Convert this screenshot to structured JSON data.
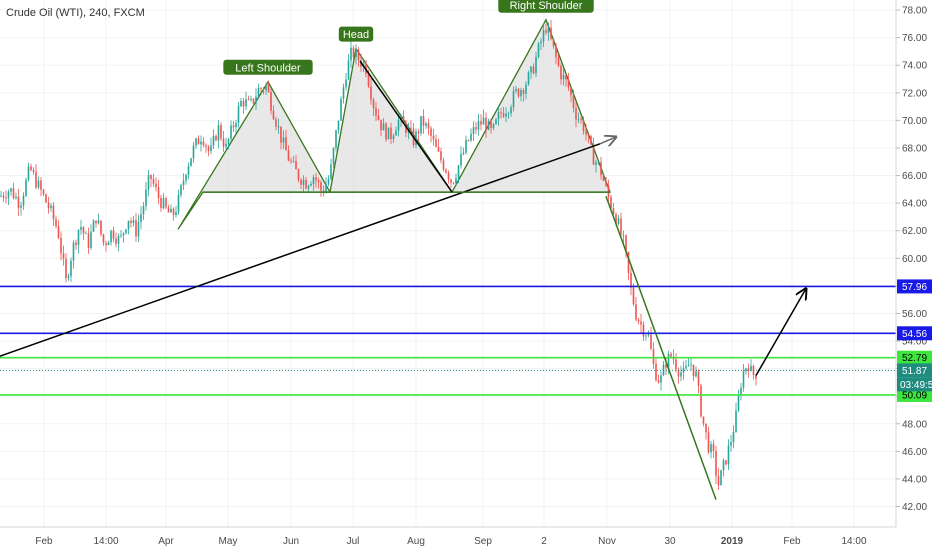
{
  "chart_data": {
    "type": "candlestick",
    "title": "Crude Oil (WTI), 240, FXCM",
    "ylim": [
      41,
      79
    ],
    "xlim": [
      0,
      932
    ],
    "y_ticks": [
      "42.00",
      "44.00",
      "46.00",
      "48.00",
      "50.00",
      "52.00",
      "54.00",
      "56.00",
      "58.00",
      "60.00",
      "62.00",
      "64.00",
      "66.00",
      "68.00",
      "70.00",
      "72.00",
      "74.00",
      "76.00",
      "78.00"
    ],
    "x_ticks": [
      {
        "label": "Feb",
        "x": 44
      },
      {
        "label": "14:00",
        "x": 106
      },
      {
        "label": "Apr",
        "x": 166
      },
      {
        "label": "May",
        "x": 228
      },
      {
        "label": "Jun",
        "x": 291
      },
      {
        "label": "Jul",
        "x": 353
      },
      {
        "label": "Aug",
        "x": 416
      },
      {
        "label": "Sep",
        "x": 483
      },
      {
        "label": "2",
        "x": 544
      },
      {
        "label": "Nov",
        "x": 607
      },
      {
        "label": "30",
        "x": 670
      },
      {
        "label": "2019",
        "x": 732
      },
      {
        "label": "Feb",
        "x": 792
      },
      {
        "label": "14:00",
        "x": 854
      }
    ],
    "bold_x_tick": "2019",
    "price_path": [
      [
        0,
        64.5
      ],
      [
        10,
        65
      ],
      [
        20,
        64
      ],
      [
        30,
        66.5
      ],
      [
        40,
        65
      ],
      [
        50,
        63.5
      ],
      [
        58,
        62
      ],
      [
        66,
        58.3
      ],
      [
        72,
        60.5
      ],
      [
        80,
        62.5
      ],
      [
        88,
        61
      ],
      [
        96,
        63
      ],
      [
        104,
        61
      ],
      [
        112,
        62
      ],
      [
        120,
        61.2
      ],
      [
        128,
        63
      ],
      [
        136,
        62
      ],
      [
        144,
        64
      ],
      [
        150,
        66
      ],
      [
        158,
        64.5
      ],
      [
        166,
        63.5
      ],
      [
        172,
        63
      ],
      [
        178,
        64
      ],
      [
        186,
        66.5
      ],
      [
        194,
        68
      ],
      [
        202,
        69
      ],
      [
        210,
        67.5
      ],
      [
        218,
        69.5
      ],
      [
        226,
        68
      ],
      [
        234,
        69.8
      ],
      [
        242,
        71.5
      ],
      [
        250,
        71
      ],
      [
        258,
        72.2
      ],
      [
        266,
        72.5
      ],
      [
        274,
        70.5
      ],
      [
        282,
        68.5
      ],
      [
        290,
        67
      ],
      [
        298,
        66
      ],
      [
        306,
        65.5
      ],
      [
        314,
        66
      ],
      [
        322,
        64.8
      ],
      [
        330,
        66
      ],
      [
        338,
        70
      ],
      [
        346,
        73.5
      ],
      [
        352,
        75
      ],
      [
        358,
        74.5
      ],
      [
        366,
        73.8
      ],
      [
        374,
        71
      ],
      [
        382,
        69.5
      ],
      [
        390,
        68.8
      ],
      [
        398,
        70
      ],
      [
        406,
        69.5
      ],
      [
        414,
        68.5
      ],
      [
        422,
        70
      ],
      [
        430,
        69
      ],
      [
        438,
        67.5
      ],
      [
        446,
        66.5
      ],
      [
        452,
        65.5
      ],
      [
        460,
        67
      ],
      [
        468,
        68.5
      ],
      [
        476,
        69.5
      ],
      [
        484,
        70
      ],
      [
        492,
        69
      ],
      [
        500,
        70.5
      ],
      [
        508,
        71
      ],
      [
        516,
        72
      ],
      [
        524,
        72.5
      ],
      [
        532,
        73.5
      ],
      [
        540,
        75.5
      ],
      [
        546,
        76.8
      ],
      [
        552,
        75.5
      ],
      [
        560,
        73.5
      ],
      [
        568,
        72.5
      ],
      [
        576,
        70.5
      ],
      [
        584,
        69.5
      ],
      [
        592,
        67.5
      ],
      [
        600,
        66.5
      ],
      [
        608,
        64.5
      ],
      [
        616,
        63
      ],
      [
        624,
        61
      ],
      [
        630,
        58
      ],
      [
        636,
        56
      ],
      [
        642,
        55
      ],
      [
        648,
        54.5
      ],
      [
        654,
        52
      ],
      [
        660,
        51
      ],
      [
        666,
        52.5
      ],
      [
        672,
        53
      ],
      [
        678,
        52
      ],
      [
        684,
        51.5
      ],
      [
        690,
        52.5
      ],
      [
        696,
        51.5
      ],
      [
        702,
        48.5
      ],
      [
        708,
        46.5
      ],
      [
        714,
        45.5
      ],
      [
        718,
        43.5
      ],
      [
        724,
        45
      ],
      [
        730,
        46.5
      ],
      [
        736,
        48.5
      ],
      [
        742,
        51.5
      ],
      [
        748,
        52.5
      ],
      [
        752,
        51.5
      ],
      [
        758,
        51.8
      ]
    ],
    "drawn_lines": [
      {
        "name": "uptrend-line",
        "color": "#000000",
        "points": [
          [
            0,
            52.9
          ],
          [
            600,
            68.3
          ]
        ]
      },
      {
        "name": "trend-projection",
        "color": "#666666",
        "points": [
          [
            600,
            68.3
          ],
          [
            616,
            68.8
          ]
        ],
        "arrow": true
      },
      {
        "name": "neckline",
        "color": "#38761d",
        "points": [
          [
            203,
            64.8
          ],
          [
            610,
            64.8
          ]
        ]
      },
      {
        "name": "breakdown-line",
        "color": "#38761d",
        "points": [
          [
            606,
            64.5
          ],
          [
            716,
            42.5
          ]
        ]
      },
      {
        "name": "rebound-arrow",
        "color": "#000000",
        "points": [
          [
            756,
            51.5
          ],
          [
            806,
            57.8
          ]
        ],
        "arrow": true
      }
    ],
    "patterns": [
      {
        "label": "Left Shoulder",
        "points": [
          [
            178,
            62.1
          ],
          [
            268,
            72.8
          ],
          [
            330,
            64.8
          ],
          [
            203,
            64.8
          ]
        ]
      },
      {
        "label": "Head",
        "points": [
          [
            330,
            64.8
          ],
          [
            356,
            75.2
          ],
          [
            452,
            64.8
          ]
        ]
      },
      {
        "label": "Right Shoulder",
        "points": [
          [
            452,
            64.8
          ],
          [
            546,
            77.3
          ],
          [
            610,
            64.8
          ]
        ]
      }
    ],
    "trendline_segments": [
      {
        "points": [
          [
            360,
            74.3
          ],
          [
            452,
            64.8
          ]
        ]
      }
    ],
    "horizontal_levels": [
      {
        "value": 57.96,
        "label": "57.96",
        "color": "#1a1ae6"
      },
      {
        "value": 54.56,
        "label": "54.56",
        "color": "#1a1ae6"
      },
      {
        "value": 52.79,
        "label": "52.79",
        "color": "#3de63d"
      },
      {
        "value": 51.87,
        "label": "51.87",
        "color": "#1f8c80",
        "dotted": true
      },
      {
        "value": 50.09,
        "label": "50.09",
        "color": "#3de63d"
      }
    ],
    "countdown_label": "03:49:5",
    "colors": {
      "up": "#26a69a",
      "down": "#ef5350",
      "pattern_fill": "#e0e0e0",
      "pattern_stroke": "#38761d",
      "annotation_bg": "#38761d",
      "current_price": "#1f8c80"
    }
  }
}
